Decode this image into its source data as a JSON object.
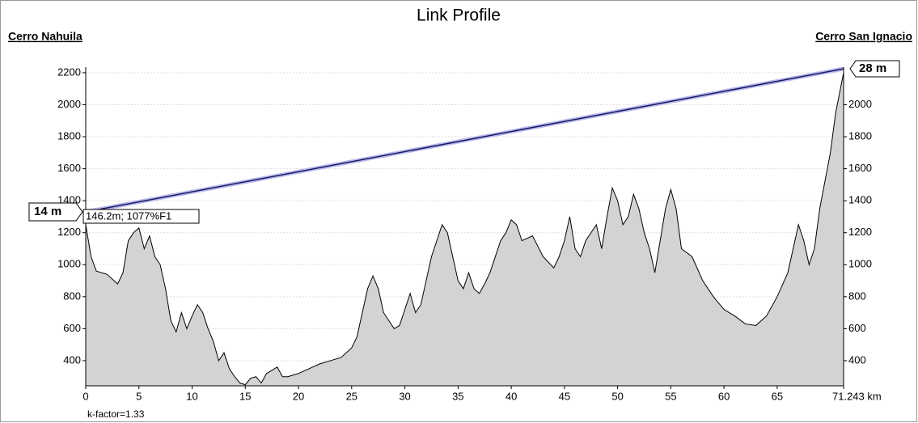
{
  "chart_data": {
    "type": "area",
    "title": "Link Profile",
    "left_site": "Cerro Nahuila",
    "right_site": "Cerro San Ignacio",
    "left_height": "14 m",
    "right_height": "28 m",
    "clearance_label": "146.2m; 1077%F1",
    "footer": "k-factor=1.33",
    "terrain": {
      "color": "#d3d3d3",
      "x": [
        0,
        0.5,
        1,
        2,
        3,
        3.5,
        4,
        4.5,
        5,
        5.5,
        6,
        6.5,
        7,
        7.5,
        8,
        8.5,
        9,
        9.5,
        10,
        10.5,
        11,
        11.5,
        12,
        12.5,
        13,
        13.5,
        14,
        14.5,
        15,
        15.5,
        16,
        16.5,
        17,
        17.5,
        18,
        18.5,
        19,
        20,
        21,
        22,
        23,
        24,
        25,
        25.5,
        26,
        26.5,
        27,
        27.5,
        28,
        28.5,
        29,
        29.5,
        30,
        30.5,
        31,
        31.5,
        32,
        32.5,
        33,
        33.5,
        34,
        34.5,
        35,
        35.5,
        36,
        36.5,
        37,
        37.5,
        38,
        39,
        39.5,
        40,
        40.5,
        41,
        42,
        43,
        44,
        44.5,
        45,
        45.5,
        46,
        46.5,
        47,
        48,
        48.5,
        49,
        49.5,
        50,
        50.5,
        51,
        51.5,
        52,
        52.5,
        53,
        53.5,
        54,
        54.5,
        55,
        55.5,
        56,
        57,
        58,
        59,
        60,
        61,
        62,
        63,
        64,
        65,
        66,
        66.5,
        67,
        67.5,
        68,
        68.5,
        69,
        70,
        70.5,
        71.243
      ],
      "values": [
        1250,
        1050,
        960,
        940,
        880,
        950,
        1150,
        1200,
        1230,
        1100,
        1180,
        1050,
        1000,
        850,
        650,
        580,
        700,
        600,
        680,
        750,
        700,
        600,
        520,
        400,
        450,
        350,
        300,
        260,
        250,
        290,
        300,
        260,
        320,
        340,
        360,
        300,
        300,
        320,
        350,
        380,
        400,
        420,
        480,
        550,
        700,
        850,
        930,
        850,
        700,
        650,
        600,
        620,
        720,
        820,
        700,
        750,
        900,
        1050,
        1150,
        1250,
        1200,
        1050,
        900,
        850,
        950,
        850,
        820,
        880,
        950,
        1150,
        1200,
        1280,
        1250,
        1150,
        1180,
        1050,
        980,
        1050,
        1150,
        1300,
        1100,
        1050,
        1150,
        1250,
        1100,
        1300,
        1480,
        1400,
        1250,
        1300,
        1440,
        1350,
        1200,
        1100,
        950,
        1150,
        1350,
        1470,
        1350,
        1100,
        1050,
        900,
        800,
        720,
        680,
        630,
        620,
        680,
        800,
        950,
        1100,
        1250,
        1150,
        1000,
        1100,
        1350,
        1700,
        1950,
        2200
      ]
    },
    "line_of_sight": {
      "color": "#1a1a5e",
      "x": [
        0,
        71.243
      ],
      "values": [
        1330,
        2225
      ]
    },
    "xlim": [
      0,
      71.243
    ],
    "xticks": [
      0,
      5,
      10,
      15,
      20,
      25,
      30,
      35,
      40,
      45,
      50,
      55,
      60,
      65,
      {
        "value": 71.243,
        "label": "71.243 km"
      }
    ],
    "ylim": [
      243,
      2235
    ],
    "yticks": [
      400,
      600,
      800,
      1000,
      1200,
      1400,
      1600,
      1800,
      2000,
      2200
    ],
    "y2lim": [
      243,
      2235
    ],
    "y2ticks": [
      400,
      600,
      800,
      1000,
      1200,
      1400,
      1600,
      1800,
      2000
    ],
    "grid": true
  }
}
